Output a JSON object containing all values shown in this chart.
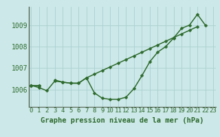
{
  "xlabel": "Graphe pression niveau de la mer (hPa)",
  "x": [
    0,
    1,
    2,
    3,
    4,
    5,
    6,
    7,
    8,
    9,
    10,
    11,
    12,
    13,
    14,
    15,
    16,
    17,
    18,
    19,
    20,
    21,
    22,
    23
  ],
  "line_main": [
    1006.2,
    1006.1,
    1005.95,
    1006.4,
    1006.35,
    1006.3,
    1006.3,
    1006.55,
    1005.85,
    1005.6,
    1005.55,
    1005.55,
    1005.65,
    1006.05,
    1006.65,
    1007.3,
    1007.75,
    1008.0,
    1008.4,
    1008.85,
    1009.0,
    1009.5,
    1009.0,
    null
  ],
  "line_trend": [
    1006.2,
    1006.2,
    null,
    null,
    null,
    null,
    null,
    1006.55,
    1006.72,
    1006.89,
    1007.06,
    1007.23,
    1007.4,
    1007.57,
    1007.74,
    1007.91,
    1008.08,
    1008.25,
    1008.42,
    1008.59,
    1008.76,
    1008.93,
    null,
    null
  ],
  "line_short": [
    1006.2,
    1006.2,
    null,
    1006.45,
    1006.35,
    1006.3,
    1006.3,
    1006.55,
    null,
    null,
    null,
    null,
    null,
    null,
    null,
    null,
    null,
    null,
    null,
    null,
    null,
    null,
    null,
    null
  ],
  "ylim": [
    1005.2,
    1009.85
  ],
  "yticks": [
    1006,
    1007,
    1008,
    1009
  ],
  "xlim": [
    -0.3,
    23.3
  ],
  "background_color": "#cce8e8",
  "grid_color": "#aacfcf",
  "line_color": "#2d6a2d",
  "tick_label_color": "#2d6a2d",
  "xlabel_color": "#2d6a2d",
  "xlabel_fontsize": 7.5,
  "tick_fontsize": 6.5,
  "linewidth": 1.1,
  "markersize": 2.5
}
